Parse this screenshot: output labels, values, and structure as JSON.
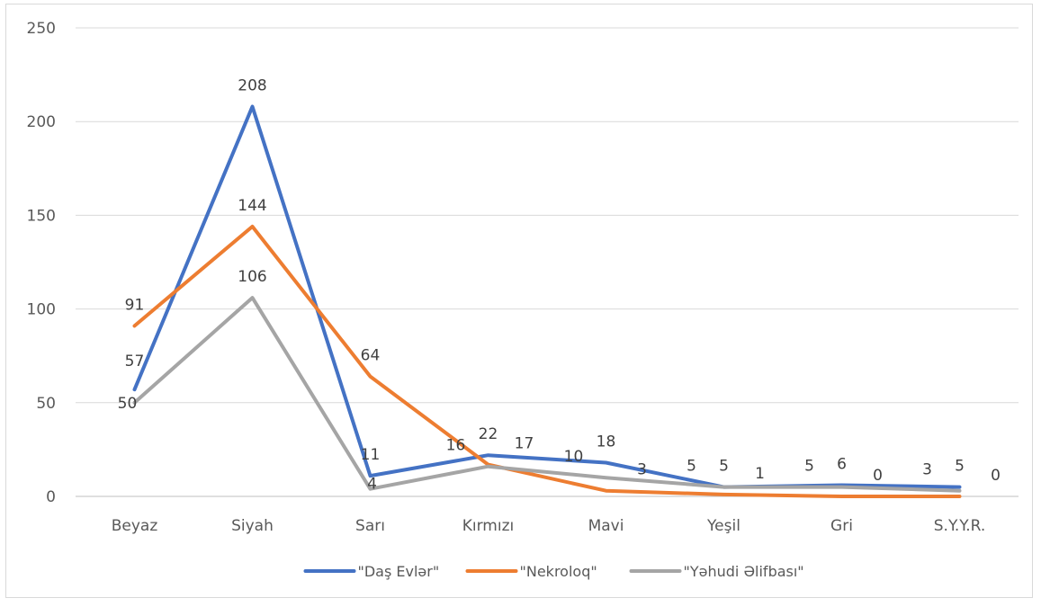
{
  "chart_data": {
    "type": "line",
    "title": "",
    "xlabel": "",
    "ylabel": "",
    "categories": [
      "Beyaz",
      "Siyah",
      "Sarı",
      "Kırmızı",
      "Mavi",
      "Yeşil",
      "Gri",
      "S.Y.Y.R."
    ],
    "ylim": [
      0,
      250
    ],
    "yticks": [
      0,
      50,
      100,
      150,
      200,
      250
    ],
    "grid": "horizontal",
    "legend": "bottom",
    "series": [
      {
        "name": "\"Daş Evlər\"",
        "color": "#4472c4",
        "values": [
          57,
          208,
          11,
          22,
          18,
          5,
          6,
          5
        ],
        "labels": [
          "57",
          "208",
          "11",
          "22",
          "18",
          "5",
          "6",
          "5"
        ]
      },
      {
        "name": "\"Nekroloq\"",
        "color": "#ed7d31",
        "values": [
          91,
          144,
          64,
          17,
          3,
          1,
          0,
          0
        ],
        "labels": [
          "91",
          "144",
          "64",
          "17",
          "3",
          "1",
          "0",
          "0"
        ]
      },
      {
        "name": "\"Yəhudi Əlifbası\"",
        "color": "#a5a5a5",
        "values": [
          50,
          106,
          4,
          16,
          10,
          5,
          5,
          3
        ],
        "labels": [
          "50",
          "106",
          "4",
          "16",
          "10",
          "5",
          "5",
          "3"
        ]
      }
    ]
  }
}
